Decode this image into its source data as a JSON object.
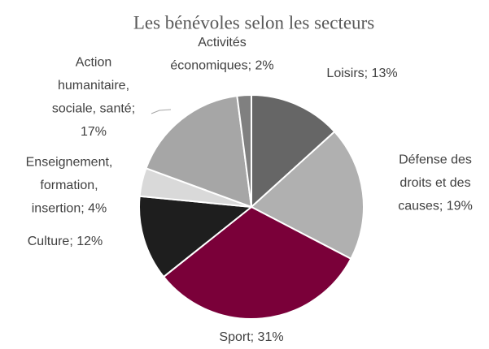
{
  "chart_data": {
    "type": "pie",
    "title": "Les bénévoles selon les secteurs",
    "values": [
      13,
      19,
      31,
      12,
      4,
      17,
      2
    ],
    "value_labels": [
      "Loisirs; 13%",
      "Défense des\ndroits et des\ncauses; 19%",
      "Sport; 31%",
      "Culture; 12%",
      "Enseignement,\nformation,\ninsertion; 4%",
      "Action\nhumanitaire,\nsociale, santé;\n17%",
      "Activités\néconomiques; 2%"
    ],
    "colors": [
      "#666666",
      "#b0b0b0",
      "#7a0039",
      "#1e1e1e",
      "#d9d9d9",
      "#a6a6a6",
      "#808080"
    ]
  }
}
